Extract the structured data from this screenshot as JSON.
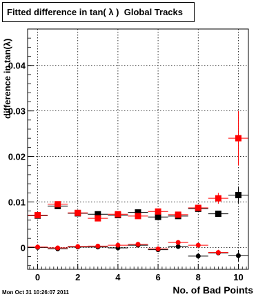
{
  "title": "Fitted difference in tan( λ )  Global Tracks",
  "timestamp": "Mon Oct 31 10:26:07 2011",
  "chart_data": {
    "type": "scatter",
    "title": "Fitted difference in tan( λ )  Global Tracks",
    "xlabel": "No. of Bad Points",
    "ylabel": "difference in tan(λ)",
    "xlim": [
      -0.5,
      10.5
    ],
    "ylim": [
      -0.0048,
      0.048
    ],
    "x_ticks": [
      0,
      2,
      4,
      6,
      8,
      10
    ],
    "x_tick_labels": [
      "0",
      "2",
      "4",
      "6",
      "8",
      "10"
    ],
    "y_ticks": [
      0,
      0.01,
      0.02,
      0.03,
      0.04
    ],
    "y_tick_labels": [
      "0",
      "0.01",
      "0.02",
      "0.03",
      "0.04"
    ],
    "grid": true,
    "series": [
      {
        "marker": "square",
        "color": "#000000",
        "points": [
          {
            "x": 0,
            "y": 0.007,
            "yerr": 0.0003
          },
          {
            "x": 1,
            "y": 0.0091,
            "yerr": 0.0003
          },
          {
            "x": 2,
            "y": 0.0075,
            "yerr": 0.0003
          },
          {
            "x": 3,
            "y": 0.0073,
            "yerr": 0.0003
          },
          {
            "x": 4,
            "y": 0.0071,
            "yerr": 0.0003
          },
          {
            "x": 5,
            "y": 0.0077,
            "yerr": 0.0004
          },
          {
            "x": 6,
            "y": 0.0067,
            "yerr": 0.0005
          },
          {
            "x": 7,
            "y": 0.0069,
            "yerr": 0.0005
          },
          {
            "x": 8,
            "y": 0.0085,
            "yerr": 0.0005
          },
          {
            "x": 9,
            "y": 0.0074,
            "yerr": 0.0006
          },
          {
            "x": 10,
            "y": 0.0115,
            "yerr": 0.0018
          }
        ]
      },
      {
        "marker": "square",
        "color": "#ff0000",
        "points": [
          {
            "x": 0,
            "y": 0.0071,
            "yerr": 0.0003
          },
          {
            "x": 1,
            "y": 0.0095,
            "yerr": 0.0003
          },
          {
            "x": 2,
            "y": 0.0076,
            "yerr": 0.0003
          },
          {
            "x": 3,
            "y": 0.0064,
            "yerr": 0.0004
          },
          {
            "x": 4,
            "y": 0.0073,
            "yerr": 0.0004
          },
          {
            "x": 5,
            "y": 0.0069,
            "yerr": 0.0004
          },
          {
            "x": 6,
            "y": 0.0079,
            "yerr": 0.0005
          },
          {
            "x": 7,
            "y": 0.0072,
            "yerr": 0.0005
          },
          {
            "x": 8,
            "y": 0.0087,
            "yerr": 0.0006
          },
          {
            "x": 9,
            "y": 0.0108,
            "yerr": 0.0012
          },
          {
            "x": 10,
            "y": 0.024,
            "yerr": 0.006
          }
        ]
      },
      {
        "marker": "circle",
        "color": "#000000",
        "points": [
          {
            "x": 0,
            "y": 0.0,
            "yerr": 0.0002
          },
          {
            "x": 1,
            "y": -0.0003,
            "yerr": 0.0002
          },
          {
            "x": 2,
            "y": 0.0001,
            "yerr": 0.0002
          },
          {
            "x": 3,
            "y": 0.0001,
            "yerr": 0.0002
          },
          {
            "x": 4,
            "y": -0.0001,
            "yerr": 0.0002
          },
          {
            "x": 5,
            "y": 0.0005,
            "yerr": 0.0003
          },
          {
            "x": 6,
            "y": -0.0005,
            "yerr": 0.0003
          },
          {
            "x": 7,
            "y": 0.0002,
            "yerr": 0.0003
          },
          {
            "x": 8,
            "y": -0.0019,
            "yerr": 0.0004
          },
          {
            "x": 9,
            "y": -0.0012,
            "yerr": 0.0005
          },
          {
            "x": 10,
            "y": -0.0018,
            "yerr": 0.0012
          }
        ]
      },
      {
        "marker": "circle",
        "color": "#ff0000",
        "points": [
          {
            "x": 0,
            "y": 0.0001,
            "yerr": 0.0002
          },
          {
            "x": 1,
            "y": -0.0001,
            "yerr": 0.0002
          },
          {
            "x": 2,
            "y": 0.0002,
            "yerr": 0.0002
          },
          {
            "x": 3,
            "y": 0.0003,
            "yerr": 0.0002
          },
          {
            "x": 4,
            "y": 0.0005,
            "yerr": 0.0003
          },
          {
            "x": 5,
            "y": 0.0007,
            "yerr": 0.0003
          },
          {
            "x": 6,
            "y": -0.0003,
            "yerr": 0.0003
          },
          {
            "x": 7,
            "y": 0.0011,
            "yerr": 0.0004
          },
          {
            "x": 8,
            "y": 0.0005,
            "yerr": 0.0004
          },
          {
            "x": 9,
            "y": -0.0011,
            "yerr": 0.0006
          },
          {
            "x": 10,
            "y": null,
            "yerr": null
          }
        ]
      }
    ]
  }
}
